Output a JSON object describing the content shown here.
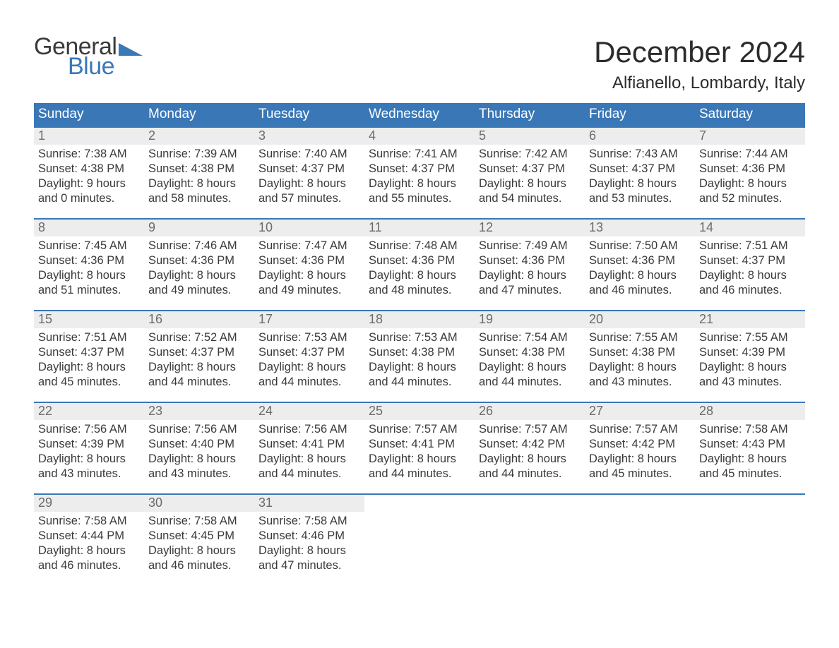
{
  "logo": {
    "word1": "General",
    "word2": "Blue",
    "tri_color": "#3a78b8"
  },
  "title": "December 2024",
  "location": "Alfianello, Lombardy, Italy",
  "colors": {
    "header_bg": "#3a77b7",
    "header_text": "#ffffff",
    "daynum_bg": "#ededed",
    "daynum_text": "#6b6b6b",
    "body_text": "#3a3a3a",
    "week_border": "#3a77b7"
  },
  "day_names": [
    "Sunday",
    "Monday",
    "Tuesday",
    "Wednesday",
    "Thursday",
    "Friday",
    "Saturday"
  ],
  "weeks": [
    [
      {
        "n": "1",
        "sr": "7:38 AM",
        "ss": "4:38 PM",
        "dl": "9 hours and 0 minutes."
      },
      {
        "n": "2",
        "sr": "7:39 AM",
        "ss": "4:38 PM",
        "dl": "8 hours and 58 minutes."
      },
      {
        "n": "3",
        "sr": "7:40 AM",
        "ss": "4:37 PM",
        "dl": "8 hours and 57 minutes."
      },
      {
        "n": "4",
        "sr": "7:41 AM",
        "ss": "4:37 PM",
        "dl": "8 hours and 55 minutes."
      },
      {
        "n": "5",
        "sr": "7:42 AM",
        "ss": "4:37 PM",
        "dl": "8 hours and 54 minutes."
      },
      {
        "n": "6",
        "sr": "7:43 AM",
        "ss": "4:37 PM",
        "dl": "8 hours and 53 minutes."
      },
      {
        "n": "7",
        "sr": "7:44 AM",
        "ss": "4:36 PM",
        "dl": "8 hours and 52 minutes."
      }
    ],
    [
      {
        "n": "8",
        "sr": "7:45 AM",
        "ss": "4:36 PM",
        "dl": "8 hours and 51 minutes."
      },
      {
        "n": "9",
        "sr": "7:46 AM",
        "ss": "4:36 PM",
        "dl": "8 hours and 49 minutes."
      },
      {
        "n": "10",
        "sr": "7:47 AM",
        "ss": "4:36 PM",
        "dl": "8 hours and 49 minutes."
      },
      {
        "n": "11",
        "sr": "7:48 AM",
        "ss": "4:36 PM",
        "dl": "8 hours and 48 minutes."
      },
      {
        "n": "12",
        "sr": "7:49 AM",
        "ss": "4:36 PM",
        "dl": "8 hours and 47 minutes."
      },
      {
        "n": "13",
        "sr": "7:50 AM",
        "ss": "4:36 PM",
        "dl": "8 hours and 46 minutes."
      },
      {
        "n": "14",
        "sr": "7:51 AM",
        "ss": "4:37 PM",
        "dl": "8 hours and 46 minutes."
      }
    ],
    [
      {
        "n": "15",
        "sr": "7:51 AM",
        "ss": "4:37 PM",
        "dl": "8 hours and 45 minutes."
      },
      {
        "n": "16",
        "sr": "7:52 AM",
        "ss": "4:37 PM",
        "dl": "8 hours and 44 minutes."
      },
      {
        "n": "17",
        "sr": "7:53 AM",
        "ss": "4:37 PM",
        "dl": "8 hours and 44 minutes."
      },
      {
        "n": "18",
        "sr": "7:53 AM",
        "ss": "4:38 PM",
        "dl": "8 hours and 44 minutes."
      },
      {
        "n": "19",
        "sr": "7:54 AM",
        "ss": "4:38 PM",
        "dl": "8 hours and 44 minutes."
      },
      {
        "n": "20",
        "sr": "7:55 AM",
        "ss": "4:38 PM",
        "dl": "8 hours and 43 minutes."
      },
      {
        "n": "21",
        "sr": "7:55 AM",
        "ss": "4:39 PM",
        "dl": "8 hours and 43 minutes."
      }
    ],
    [
      {
        "n": "22",
        "sr": "7:56 AM",
        "ss": "4:39 PM",
        "dl": "8 hours and 43 minutes."
      },
      {
        "n": "23",
        "sr": "7:56 AM",
        "ss": "4:40 PM",
        "dl": "8 hours and 43 minutes."
      },
      {
        "n": "24",
        "sr": "7:56 AM",
        "ss": "4:41 PM",
        "dl": "8 hours and 44 minutes."
      },
      {
        "n": "25",
        "sr": "7:57 AM",
        "ss": "4:41 PM",
        "dl": "8 hours and 44 minutes."
      },
      {
        "n": "26",
        "sr": "7:57 AM",
        "ss": "4:42 PM",
        "dl": "8 hours and 44 minutes."
      },
      {
        "n": "27",
        "sr": "7:57 AM",
        "ss": "4:42 PM",
        "dl": "8 hours and 45 minutes."
      },
      {
        "n": "28",
        "sr": "7:58 AM",
        "ss": "4:43 PM",
        "dl": "8 hours and 45 minutes."
      }
    ],
    [
      {
        "n": "29",
        "sr": "7:58 AM",
        "ss": "4:44 PM",
        "dl": "8 hours and 46 minutes."
      },
      {
        "n": "30",
        "sr": "7:58 AM",
        "ss": "4:45 PM",
        "dl": "8 hours and 46 minutes."
      },
      {
        "n": "31",
        "sr": "7:58 AM",
        "ss": "4:46 PM",
        "dl": "8 hours and 47 minutes."
      },
      null,
      null,
      null,
      null
    ]
  ],
  "labels": {
    "sunrise": "Sunrise:",
    "sunset": "Sunset:",
    "daylight": "Daylight:"
  }
}
